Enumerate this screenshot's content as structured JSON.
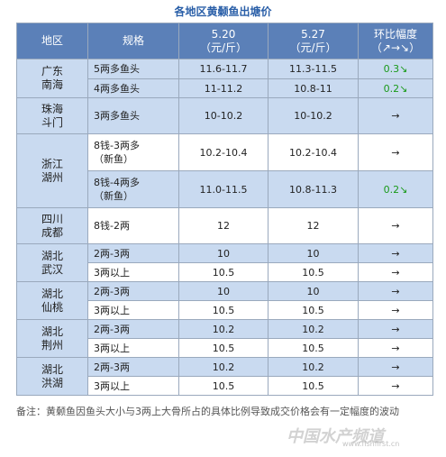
{
  "title": "各地区黄颡鱼出塘价",
  "table": {
    "header": [
      [
        "地区"
      ],
      [
        "规格"
      ],
      [
        "5.20",
        "（元/斤）"
      ],
      [
        "5.27",
        "（元/斤）"
      ],
      [
        "环比幅度",
        "（↗→↘）"
      ]
    ],
    "groups": [
      {
        "region": [
          "广东",
          "南海"
        ],
        "rows": [
          {
            "spec": [
              "5两多鱼头"
            ],
            "p1": "11.6-11.7",
            "p2": "11.3-11.5",
            "change": "0.3↘"
          },
          {
            "spec": [
              "4两多鱼头"
            ],
            "p1": "11-11.2",
            "p2": "10.8-11",
            "change": "0.2↘"
          }
        ]
      },
      {
        "region": [
          "珠海",
          "斗门"
        ],
        "rows": [
          {
            "spec": [
              "3两多鱼头"
            ],
            "p1": "10-10.2",
            "p2": "10-10.2",
            "change": "→"
          }
        ]
      },
      {
        "region": [
          "浙江",
          "湖州"
        ],
        "rows": [
          {
            "spec": [
              "8钱-3两多",
              "（新鱼）"
            ],
            "p1": "10.2-10.4",
            "p2": "10.2-10.4",
            "change": "→"
          },
          {
            "spec": [
              "8钱-4两多",
              "（新鱼）"
            ],
            "p1": "11.0-11.5",
            "p2": "10.8-11.3",
            "change": "0.2↘"
          }
        ]
      },
      {
        "region": [
          "四川",
          "成都"
        ],
        "rows": [
          {
            "spec": [
              "8钱-2两"
            ],
            "p1": "12",
            "p2": "12",
            "change": "→"
          }
        ]
      },
      {
        "region": [
          "湖北",
          "武汉"
        ],
        "rows": [
          {
            "spec": [
              "2两-3两"
            ],
            "p1": "10",
            "p2": "10",
            "change": "→"
          },
          {
            "spec": [
              "3两以上"
            ],
            "p1": "10.5",
            "p2": "10.5",
            "change": "→"
          }
        ]
      },
      {
        "region": [
          "湖北",
          "仙桃"
        ],
        "rows": [
          {
            "spec": [
              "2两-3两"
            ],
            "p1": "10",
            "p2": "10",
            "change": "→"
          },
          {
            "spec": [
              "3两以上"
            ],
            "p1": "10.5",
            "p2": "10.5",
            "change": "→"
          }
        ]
      },
      {
        "region": [
          "湖北",
          "荆州"
        ],
        "rows": [
          {
            "spec": [
              "2两-3两"
            ],
            "p1": "10.2",
            "p2": "10.2",
            "change": "→"
          },
          {
            "spec": [
              "3两以上"
            ],
            "p1": "10.5",
            "p2": "10.5",
            "change": "→"
          }
        ]
      },
      {
        "region": [
          "湖北",
          "洪湖"
        ],
        "rows": [
          {
            "spec": [
              "2两-3两"
            ],
            "p1": "10.2",
            "p2": "10.2",
            "change": "→"
          },
          {
            "spec": [
              "3两以上"
            ],
            "p1": "10.5",
            "p2": "10.5",
            "change": "→"
          }
        ]
      }
    ]
  },
  "note": "备注：黄颡鱼因鱼头大小与3两上大骨所占的具体比例导致成交价格会有一定幅度的波动",
  "watermark": "中国水产频道",
  "watermark_url": "www.fishfirst.cn"
}
